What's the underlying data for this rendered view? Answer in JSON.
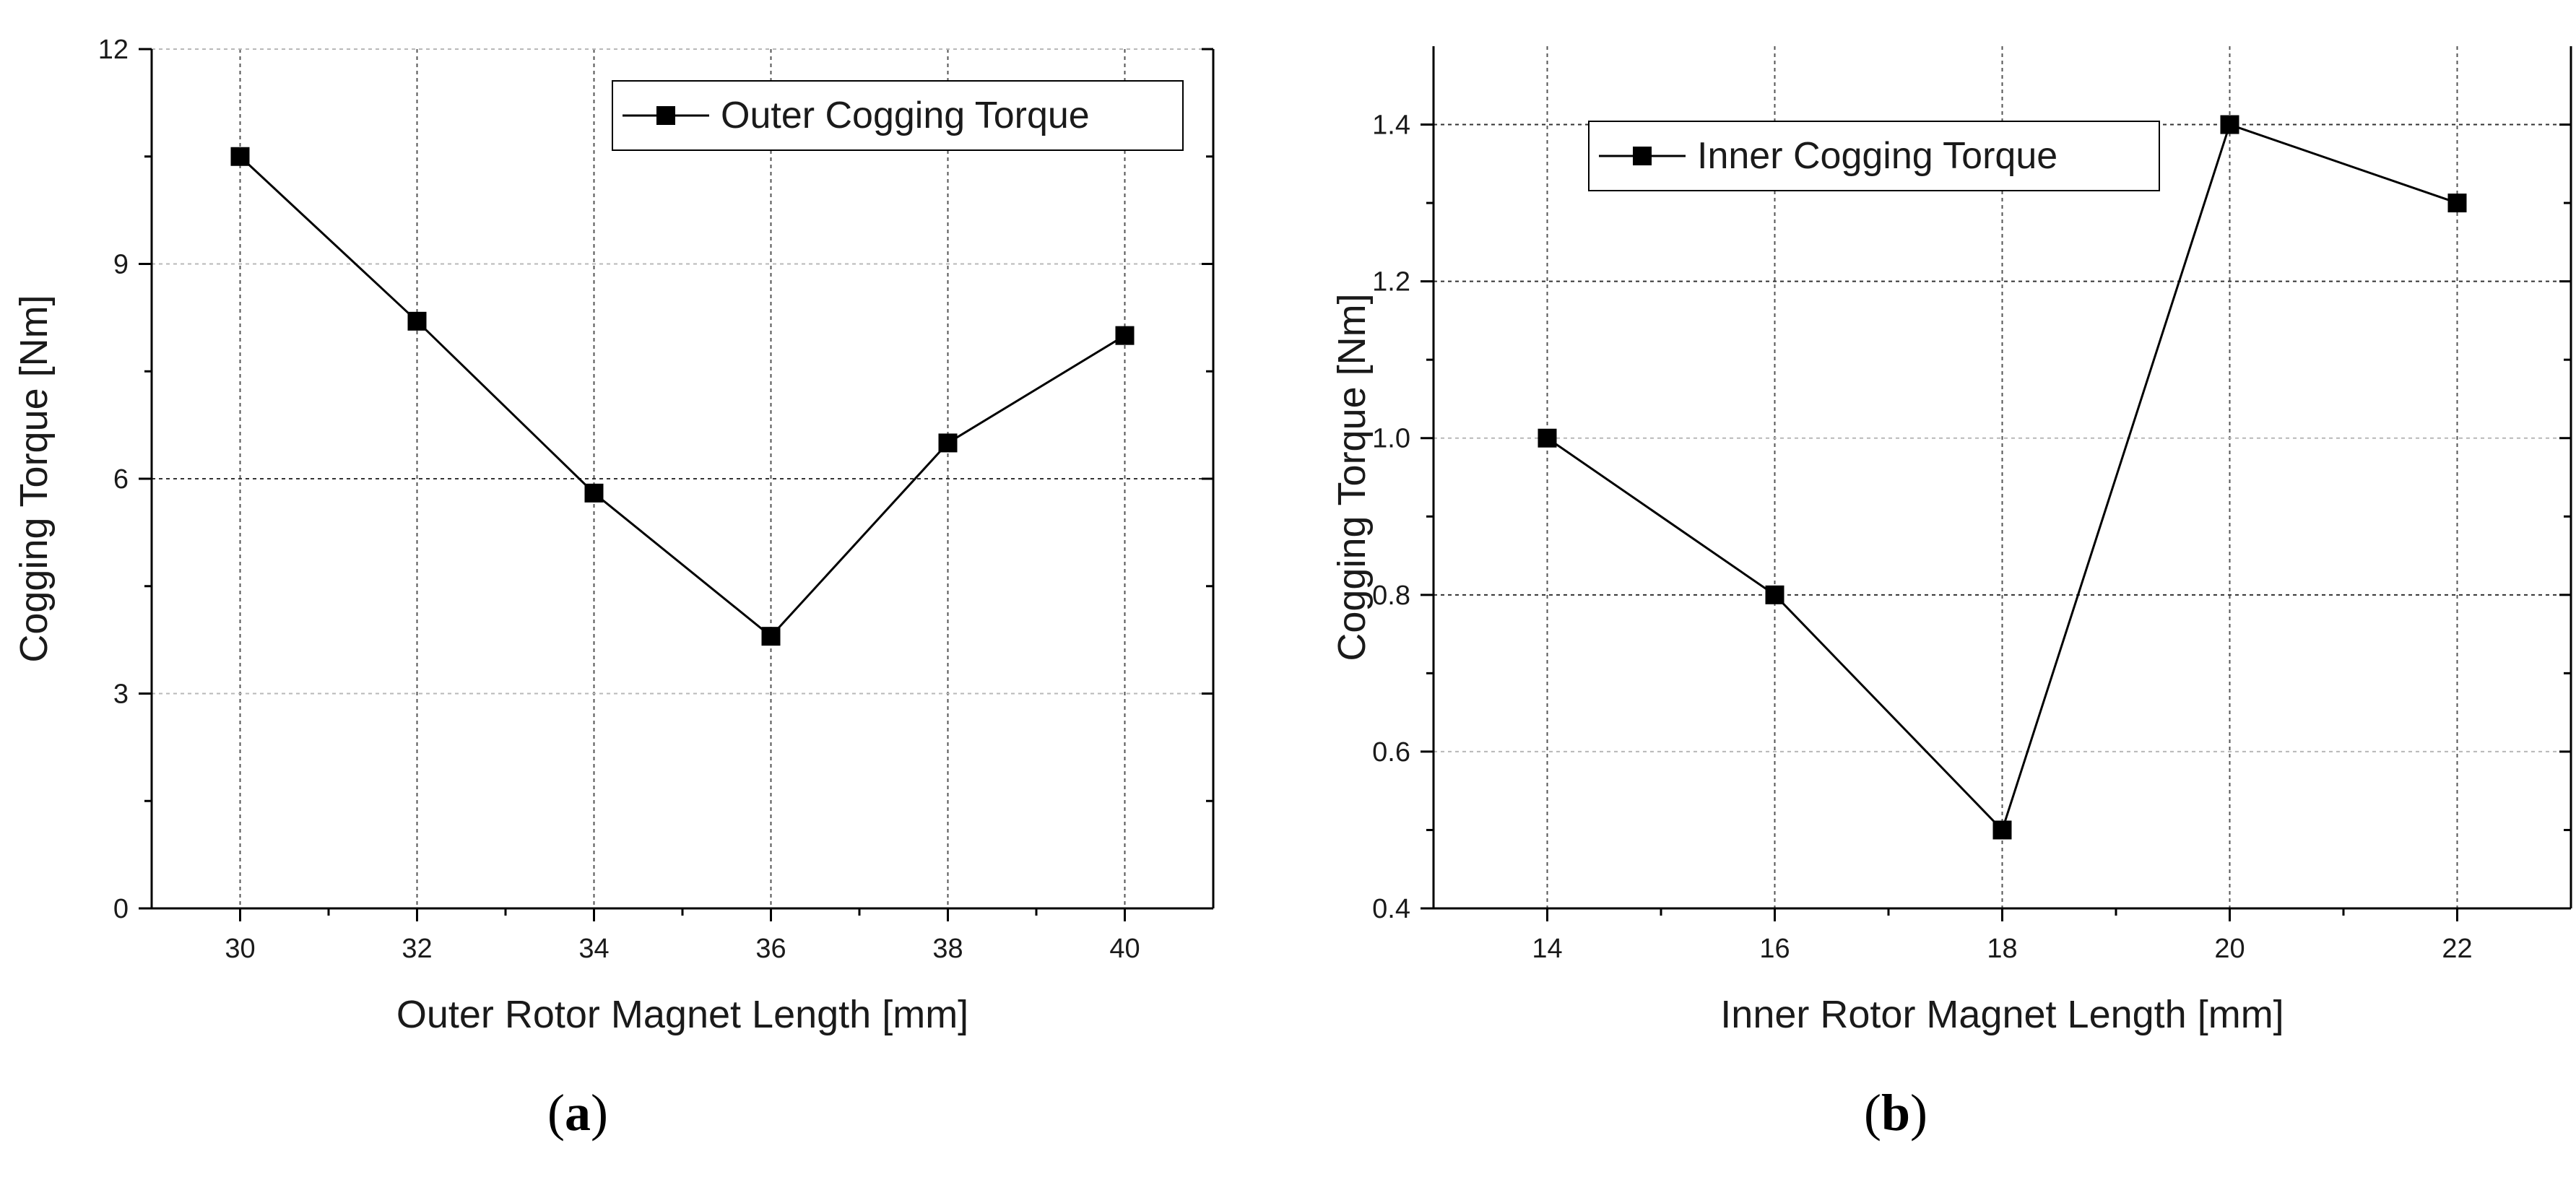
{
  "chart_data": [
    {
      "type": "line",
      "title": "",
      "xlabel": "Outer Rotor Magnet Length [mm]",
      "ylabel": "Cogging Torque [Nm]",
      "xlim": [
        29,
        41
      ],
      "ylim": [
        0,
        12
      ],
      "xticks": [
        30,
        32,
        34,
        36,
        38,
        40
      ],
      "yticks": [
        0,
        3,
        6,
        9,
        12
      ],
      "grid": true,
      "legend_position": "top-right",
      "series": [
        {
          "name": "Outer Cogging Torque",
          "x": [
            30,
            32,
            34,
            36,
            38,
            40
          ],
          "values": [
            10.5,
            8.2,
            5.8,
            3.8,
            6.5,
            8.0
          ]
        }
      ],
      "caption": "a"
    },
    {
      "type": "line",
      "title": "",
      "xlabel": "Inner Rotor Magnet Length [mm]",
      "ylabel": "Cogging Torque [Nm]",
      "xlim": [
        13,
        23
      ],
      "ylim": [
        0.4,
        1.5
      ],
      "xticks": [
        14,
        16,
        18,
        20,
        22
      ],
      "yticks": [
        0.4,
        0.6,
        0.8,
        1.0,
        1.2,
        1.4
      ],
      "grid": true,
      "legend_position": "top-left",
      "series": [
        {
          "name": "Inner Cogging Torque",
          "x": [
            14,
            16,
            18,
            20,
            22
          ],
          "values": [
            1.0,
            0.8,
            0.5,
            1.4,
            1.3
          ]
        }
      ],
      "caption": "b"
    }
  ]
}
